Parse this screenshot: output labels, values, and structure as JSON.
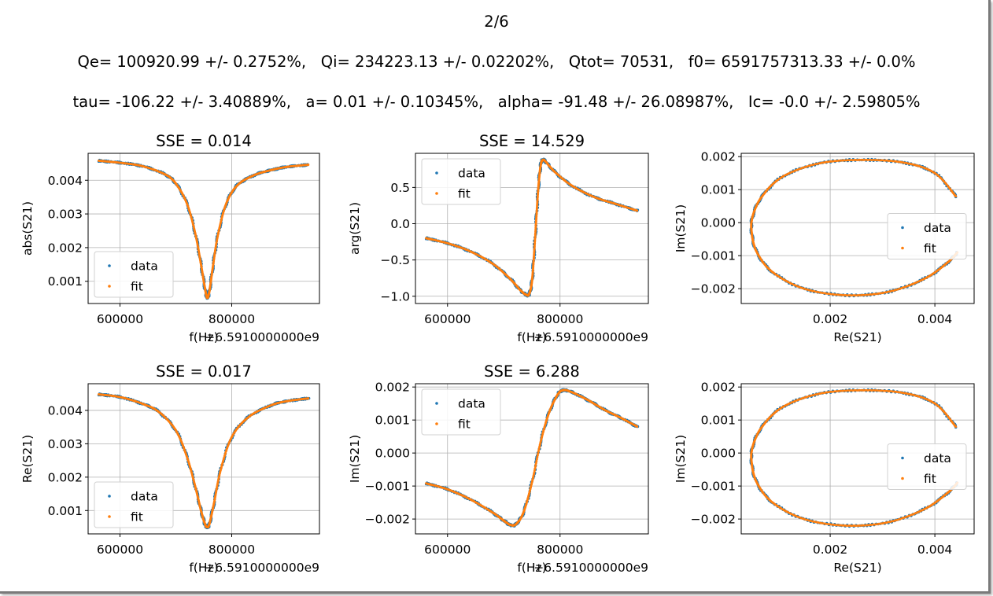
{
  "figure": {
    "page_label": "2/6",
    "params_line1": "Qe= 100920.99 +/- 0.2752%,   Qi= 234223.13 +/- 0.02202%,   Qtot= 70531,   f0= 6591757313.33 +/- 0.0%",
    "params_line2": "tau= -106.22 +/- 3.40889%,   a= 0.01 +/- 0.10345%,   alpha= -91.48 +/- 26.08987%,   Ic= -0.0 +/- 2.59805%"
  },
  "colors": {
    "data": "#1f77b4",
    "fit": "#ff7f0e",
    "grid": "#b0b0b0",
    "axis": "#000000"
  },
  "chart_data": [
    {
      "type": "scatter",
      "title": "SSE = 0.014",
      "xlabel": "f(Hz)",
      "ylabel": "abs(S21)",
      "offset_text": "+6.5910000000e9",
      "xlim": [
        543000,
        957000
      ],
      "ylim": [
        0.00034,
        0.0048
      ],
      "xticks": [
        600000,
        800000
      ],
      "xtick_labels": [
        "600000",
        "800000"
      ],
      "yticks": [
        0.001,
        0.002,
        0.003,
        0.004
      ],
      "ytick_labels": [
        "0.001",
        "0.002",
        "0.003",
        "0.004"
      ],
      "grid": true,
      "legend": "lower-left",
      "series": [
        {
          "name": "data",
          "x": [
            562000,
            600000,
            640000,
            680000,
            700000,
            720000,
            735000,
            745000,
            752000,
            756000,
            760000,
            766000,
            775000,
            790000,
            810000,
            840000,
            870000,
            900000,
            937000
          ],
          "y": [
            0.00458,
            0.00452,
            0.00442,
            0.00418,
            0.0039,
            0.0033,
            0.0024,
            0.0015,
            0.0008,
            0.00051,
            0.0007,
            0.0014,
            0.00235,
            0.0033,
            0.00385,
            0.00415,
            0.0043,
            0.0044,
            0.00446
          ]
        },
        {
          "name": "fit",
          "x": [
            562000,
            600000,
            640000,
            680000,
            700000,
            720000,
            735000,
            745000,
            752000,
            756000,
            760000,
            766000,
            775000,
            790000,
            810000,
            840000,
            870000,
            900000,
            937000
          ],
          "y": [
            0.00458,
            0.00452,
            0.00442,
            0.00418,
            0.0039,
            0.0033,
            0.0024,
            0.0015,
            0.0008,
            0.00051,
            0.0007,
            0.0014,
            0.00235,
            0.0033,
            0.00385,
            0.00415,
            0.0043,
            0.0044,
            0.00446
          ]
        }
      ]
    },
    {
      "type": "scatter",
      "title": "SSE = 14.529",
      "xlabel": "f(Hz)",
      "ylabel": "arg(S21)",
      "offset_text": "+6.5910000000e9",
      "xlim": [
        543000,
        957000
      ],
      "ylim": [
        -1.1,
        0.97
      ],
      "xticks": [
        600000,
        800000
      ],
      "xtick_labels": [
        "600000",
        "800000"
      ],
      "yticks": [
        -1.0,
        -0.5,
        0.0,
        0.5
      ],
      "ytick_labels": [
        "−1.0",
        "−0.5",
        "0.0",
        "0.5"
      ],
      "grid": true,
      "legend": "upper-left",
      "series": [
        {
          "name": "data",
          "x": [
            562000,
            600000,
            640000,
            680000,
            710000,
            730000,
            740000,
            745000,
            750000,
            754000,
            758000,
            762000,
            766000,
            770000,
            775000,
            790000,
            820000,
            860000,
            900000,
            937000
          ],
          "y": [
            -0.2,
            -0.27,
            -0.38,
            -0.55,
            -0.75,
            -0.92,
            -0.98,
            -0.97,
            -0.8,
            -0.4,
            0.1,
            0.55,
            0.82,
            0.88,
            0.85,
            0.72,
            0.53,
            0.37,
            0.27,
            0.18
          ]
        },
        {
          "name": "fit",
          "x": [
            562000,
            600000,
            640000,
            680000,
            710000,
            730000,
            740000,
            745000,
            750000,
            754000,
            758000,
            762000,
            766000,
            770000,
            775000,
            790000,
            820000,
            860000,
            900000,
            937000
          ],
          "y": [
            -0.2,
            -0.27,
            -0.38,
            -0.55,
            -0.75,
            -0.92,
            -0.98,
            -0.97,
            -0.8,
            -0.4,
            0.1,
            0.55,
            0.82,
            0.88,
            0.85,
            0.72,
            0.53,
            0.37,
            0.27,
            0.18
          ]
        }
      ]
    },
    {
      "type": "scatter",
      "title": "",
      "xlabel": "Re(S21)",
      "ylabel": "Im(S21)",
      "offset_text": "",
      "xlim": [
        0.0003,
        0.00475
      ],
      "ylim": [
        -0.00245,
        0.0021
      ],
      "xticks": [
        0.002,
        0.004
      ],
      "xtick_labels": [
        "0.002",
        "0.004"
      ],
      "yticks": [
        -0.002,
        -0.001,
        0.0,
        0.001,
        0.002
      ],
      "ytick_labels": [
        "−0.002",
        "−0.001",
        "0.000",
        "0.001",
        "0.002"
      ],
      "grid": true,
      "legend": "center-right",
      "series": [
        {
          "name": "data",
          "x": [
            0.0044,
            0.004,
            0.0034,
            0.0026,
            0.0018,
            0.0011,
            0.0007,
            0.00052,
            0.0005,
            0.0006,
            0.0009,
            0.0015,
            0.0023,
            0.0031,
            0.0038,
            0.00425,
            0.00443
          ],
          "y": [
            0.0008,
            0.0015,
            0.00182,
            0.0019,
            0.0018,
            0.0014,
            0.0008,
            0.0002,
            -0.0003,
            -0.0009,
            -0.0015,
            -0.002,
            -0.0022,
            -0.0021,
            -0.0017,
            -0.0012,
            -0.0009
          ]
        },
        {
          "name": "fit",
          "x": [
            0.0044,
            0.004,
            0.0034,
            0.0026,
            0.0018,
            0.0011,
            0.0007,
            0.00052,
            0.0005,
            0.0006,
            0.0009,
            0.0015,
            0.0023,
            0.0031,
            0.0038,
            0.00425,
            0.00443
          ],
          "y": [
            0.0008,
            0.0015,
            0.00182,
            0.0019,
            0.0018,
            0.0014,
            0.0008,
            0.0002,
            -0.0003,
            -0.0009,
            -0.0015,
            -0.002,
            -0.0022,
            -0.0021,
            -0.0017,
            -0.0012,
            -0.0009
          ]
        }
      ]
    },
    {
      "type": "scatter",
      "title": "SSE = 0.017",
      "xlabel": "f(Hz)",
      "ylabel": "Re(S21)",
      "offset_text": "+6.5910000000e9",
      "xlim": [
        543000,
        957000
      ],
      "ylim": [
        0.0003,
        0.0048
      ],
      "xticks": [
        600000,
        800000
      ],
      "xtick_labels": [
        "600000",
        "800000"
      ],
      "yticks": [
        0.001,
        0.002,
        0.003,
        0.004
      ],
      "ytick_labels": [
        "0.001",
        "0.002",
        "0.003",
        "0.004"
      ],
      "grid": true,
      "legend": "lower-left",
      "series": [
        {
          "name": "data",
          "x": [
            562000,
            600000,
            640000,
            670000,
            700000,
            720000,
            735000,
            745000,
            752000,
            756000,
            760000,
            768000,
            780000,
            800000,
            830000,
            870000,
            900000,
            937000
          ],
          "y": [
            0.00448,
            0.0044,
            0.0042,
            0.00395,
            0.0034,
            0.0026,
            0.0017,
            0.001,
            0.0006,
            0.0005,
            0.0006,
            0.0012,
            0.0022,
            0.0032,
            0.0038,
            0.00415,
            0.00428,
            0.00436
          ]
        },
        {
          "name": "fit",
          "x": [
            562000,
            600000,
            640000,
            670000,
            700000,
            720000,
            735000,
            745000,
            752000,
            756000,
            760000,
            768000,
            780000,
            800000,
            830000,
            870000,
            900000,
            937000
          ],
          "y": [
            0.00448,
            0.0044,
            0.0042,
            0.00395,
            0.0034,
            0.0026,
            0.0017,
            0.001,
            0.0006,
            0.0005,
            0.0006,
            0.0012,
            0.0022,
            0.0032,
            0.0038,
            0.00415,
            0.00428,
            0.00436
          ]
        }
      ]
    },
    {
      "type": "scatter",
      "title": "SSE = 6.288",
      "xlabel": "f(Hz)",
      "ylabel": "Im(S21)",
      "offset_text": "+6.5910000000e9",
      "xlim": [
        543000,
        957000
      ],
      "ylim": [
        -0.00245,
        0.0021
      ],
      "xticks": [
        600000,
        800000
      ],
      "xtick_labels": [
        "600000",
        "800000"
      ],
      "yticks": [
        -0.002,
        -0.001,
        0.0,
        0.001,
        0.002
      ],
      "ytick_labels": [
        "−0.002",
        "−0.001",
        "0.000",
        "0.001",
        "0.002"
      ],
      "grid": true,
      "legend": "upper-left",
      "series": [
        {
          "name": "data",
          "x": [
            562000,
            600000,
            640000,
            680000,
            700000,
            712000,
            722000,
            735000,
            750000,
            765000,
            780000,
            795000,
            805000,
            820000,
            850000,
            880000,
            910000,
            937000
          ],
          "y": [
            -0.00092,
            -0.0011,
            -0.0014,
            -0.0018,
            -0.00205,
            -0.00218,
            -0.00215,
            -0.0018,
            -0.0009,
            0.0003,
            0.0012,
            0.00175,
            0.0019,
            0.00185,
            0.0016,
            0.0013,
            0.00105,
            0.0008
          ]
        },
        {
          "name": "fit",
          "x": [
            562000,
            600000,
            640000,
            680000,
            700000,
            712000,
            722000,
            735000,
            750000,
            765000,
            780000,
            795000,
            805000,
            820000,
            850000,
            880000,
            910000,
            937000
          ],
          "y": [
            -0.00092,
            -0.0011,
            -0.0014,
            -0.0018,
            -0.00205,
            -0.00218,
            -0.00215,
            -0.0018,
            -0.0009,
            0.0003,
            0.0012,
            0.00175,
            0.0019,
            0.00185,
            0.0016,
            0.0013,
            0.00105,
            0.0008
          ]
        }
      ]
    },
    {
      "type": "scatter",
      "title": "",
      "xlabel": "Re(S21)",
      "ylabel": "Im(S21)",
      "offset_text": "",
      "xlim": [
        0.0003,
        0.00475
      ],
      "ylim": [
        -0.00245,
        0.0021
      ],
      "xticks": [
        0.002,
        0.004
      ],
      "xtick_labels": [
        "0.002",
        "0.004"
      ],
      "yticks": [
        -0.002,
        -0.001,
        0.0,
        0.001,
        0.002
      ],
      "ytick_labels": [
        "−0.002",
        "−0.001",
        "0.000",
        "0.001",
        "0.002"
      ],
      "grid": true,
      "legend": "center-right",
      "series": [
        {
          "name": "data",
          "x": [
            0.0044,
            0.004,
            0.0034,
            0.0026,
            0.0018,
            0.0011,
            0.0007,
            0.00052,
            0.0005,
            0.0006,
            0.0009,
            0.0015,
            0.0023,
            0.0031,
            0.0038,
            0.00425,
            0.00443
          ],
          "y": [
            0.0008,
            0.0015,
            0.00182,
            0.0019,
            0.0018,
            0.0014,
            0.0008,
            0.0002,
            -0.0003,
            -0.0009,
            -0.0015,
            -0.002,
            -0.0022,
            -0.0021,
            -0.0017,
            -0.0012,
            -0.0009
          ]
        },
        {
          "name": "fit",
          "x": [
            0.0044,
            0.004,
            0.0034,
            0.0026,
            0.0018,
            0.0011,
            0.0007,
            0.00052,
            0.0005,
            0.0006,
            0.0009,
            0.0015,
            0.0023,
            0.0031,
            0.0038,
            0.00425,
            0.00443
          ],
          "y": [
            0.0008,
            0.0015,
            0.00182,
            0.0019,
            0.0018,
            0.0014,
            0.0008,
            0.0002,
            -0.0003,
            -0.0009,
            -0.0015,
            -0.002,
            -0.0022,
            -0.0021,
            -0.0017,
            -0.0012,
            -0.0009
          ]
        }
      ]
    }
  ]
}
